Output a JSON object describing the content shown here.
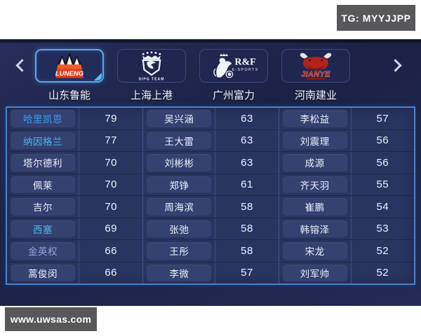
{
  "watermarks": {
    "top_right": "TG: MYYJJPP",
    "bottom_left": "www.uwsas.com"
  },
  "team_bar": {
    "left_arrow_icon": "chevron-left",
    "right_arrow_icon": "chevron-right",
    "teams": [
      {
        "name": "山东鲁能",
        "logo_icon": "luneng-crest-icon",
        "logo_text": "LUNENG",
        "selected": true
      },
      {
        "name": "上海上港",
        "logo_icon": "sipg-eagle-icon",
        "logo_text": "SIPG TEAM",
        "selected": false
      },
      {
        "name": "广州富力",
        "logo_icon": "rf-lion-icon",
        "logo_text": "R&F",
        "logo_subtext": "E-SPORTS",
        "selected": false
      },
      {
        "name": "河南建业",
        "logo_icon": "jianye-bull-icon",
        "logo_text": "JIANYE",
        "selected": false
      }
    ]
  },
  "roster": {
    "columns": [
      {
        "players": [
          {
            "name": "哈里凯恩",
            "rating": 79,
            "name_color": "#3f9ced"
          },
          {
            "name": "纳因格兰",
            "rating": 77,
            "name_color": "#49b8e8"
          },
          {
            "name": "塔尔德利",
            "rating": 70,
            "name_color": "#eef1fb"
          },
          {
            "name": "佩莱",
            "rating": 70,
            "name_color": "#eef1fb"
          },
          {
            "name": "吉尔",
            "rating": 70,
            "name_color": "#eef1fb"
          },
          {
            "name": "西塞",
            "rating": 69,
            "name_color": "#49b8e8"
          },
          {
            "name": "金英权",
            "rating": 66,
            "name_color": "#94a4d6"
          },
          {
            "name": "蒿俊闵",
            "rating": 66,
            "name_color": "#eef1fb"
          }
        ]
      },
      {
        "players": [
          {
            "name": "吴兴涵",
            "rating": 63,
            "name_color": "#eef1fb"
          },
          {
            "name": "王大雷",
            "rating": 63,
            "name_color": "#eef1fb"
          },
          {
            "name": "刘彬彬",
            "rating": 63,
            "name_color": "#eef1fb"
          },
          {
            "name": "郑铮",
            "rating": 61,
            "name_color": "#eef1fb"
          },
          {
            "name": "周海滨",
            "rating": 58,
            "name_color": "#eef1fb"
          },
          {
            "name": "张弛",
            "rating": 58,
            "name_color": "#eef1fb"
          },
          {
            "name": "王彤",
            "rating": 58,
            "name_color": "#eef1fb"
          },
          {
            "name": "李微",
            "rating": 57,
            "name_color": "#eef1fb"
          }
        ]
      },
      {
        "players": [
          {
            "name": "李松益",
            "rating": 57,
            "name_color": "#eef1fb"
          },
          {
            "name": "刘震理",
            "rating": 56,
            "name_color": "#eef1fb"
          },
          {
            "name": "成源",
            "rating": 56,
            "name_color": "#eef1fb"
          },
          {
            "name": "齐天羽",
            "rating": 55,
            "name_color": "#eef1fb"
          },
          {
            "name": "崔鹏",
            "rating": 54,
            "name_color": "#eef1fb"
          },
          {
            "name": "韩镕泽",
            "rating": 53,
            "name_color": "#eef1fb"
          },
          {
            "name": "宋龙",
            "rating": 52,
            "name_color": "#eef1fb"
          },
          {
            "name": "刘军帅",
            "rating": 52,
            "name_color": "#eef1fb"
          }
        ]
      }
    ]
  },
  "colors": {
    "table_border": "#4a82c8",
    "table_bg": "#293561",
    "name_cell_bg": "#344171",
    "selected_tile_border": "#5aa9e6",
    "watermark_bg": "#58585a",
    "rating_text": "#eef1fb"
  }
}
